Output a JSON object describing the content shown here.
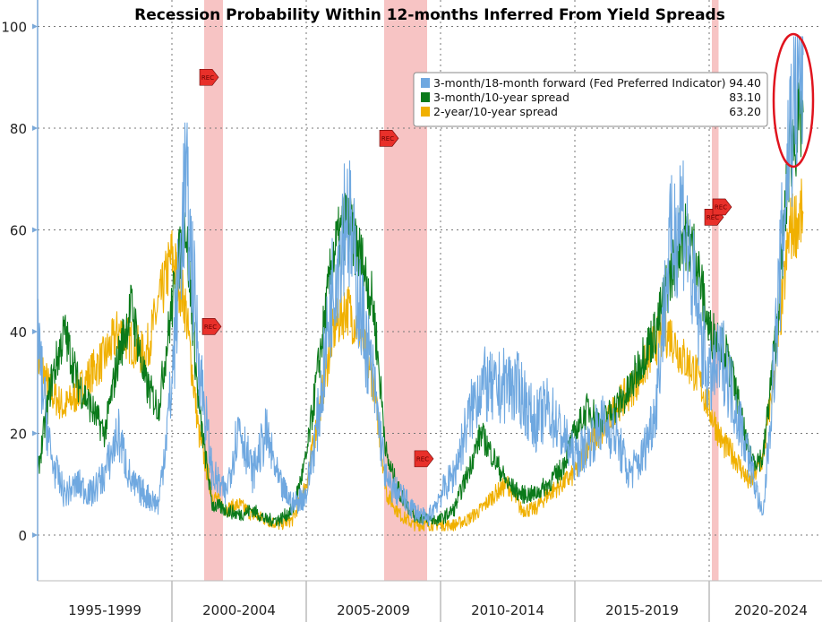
{
  "chart_data": {
    "type": "line",
    "title": "Recession Probability Within 12-months Inferred From Yield Spreads",
    "xlabel": "",
    "ylabel": "",
    "ylim": [
      -10,
      104
    ],
    "xlim": [
      1995,
      2024.6
    ],
    "yticks": [
      0,
      20,
      40,
      60,
      80,
      100
    ],
    "xcategories": [
      "1995-1999",
      "2000-2004",
      "2005-2009",
      "2010-2014",
      "2015-2019",
      "2020-2024"
    ],
    "grid": true,
    "legend_position": "top-right",
    "x": [
      1995,
      1995.5,
      1996,
      1996.5,
      1997,
      1997.5,
      1998,
      1998.5,
      1999,
      1999.5,
      2000,
      2000.5,
      2001,
      2001.5,
      2002,
      2002.5,
      2003,
      2003.5,
      2004,
      2004.5,
      2005,
      2005.5,
      2006,
      2006.5,
      2007,
      2007.5,
      2008,
      2008.5,
      2009,
      2009.5,
      2010,
      2010.5,
      2011,
      2011.5,
      2012,
      2012.5,
      2013,
      2013.5,
      2014,
      2014.5,
      2015,
      2015.5,
      2016,
      2016.5,
      2017,
      2017.5,
      2018,
      2018.5,
      2019,
      2019.5,
      2020,
      2020.5,
      2021,
      2021.5,
      2022,
      2022.5,
      2023,
      2023.5
    ],
    "series": [
      {
        "name": "3-month/18-month forward (Fed Preferred Indicator)",
        "last": "94.40",
        "color": "#6fa8e0",
        "values": [
          38,
          15,
          8,
          10,
          8,
          12,
          20,
          10,
          8,
          6,
          30,
          70,
          35,
          12,
          8,
          22,
          12,
          20,
          10,
          6,
          8,
          25,
          50,
          65,
          45,
          30,
          10,
          8,
          5,
          3,
          8,
          12,
          22,
          30,
          28,
          30,
          28,
          22,
          25,
          20,
          15,
          18,
          22,
          20,
          12,
          15,
          25,
          55,
          65,
          45,
          30,
          35,
          25,
          15,
          3,
          40,
          80,
          94.4
        ]
      },
      {
        "name": "3-month/10-year spread",
        "last": "83.10",
        "color": "#0a7a1a",
        "values": [
          12,
          30,
          40,
          30,
          25,
          20,
          35,
          45,
          30,
          25,
          45,
          62,
          25,
          6,
          5,
          4,
          5,
          3,
          3,
          5,
          15,
          35,
          55,
          62,
          55,
          45,
          15,
          8,
          4,
          3,
          3,
          5,
          12,
          20,
          15,
          10,
          8,
          8,
          10,
          13,
          20,
          25,
          22,
          25,
          28,
          35,
          40,
          50,
          60,
          55,
          40,
          38,
          28,
          15,
          15,
          40,
          75,
          83.1
        ]
      },
      {
        "name": "2-year/10-year spread",
        "last": "63.20",
        "color": "#f0b000",
        "values": [
          35,
          28,
          25,
          28,
          32,
          35,
          40,
          38,
          35,
          45,
          55,
          45,
          20,
          8,
          5,
          6,
          4,
          3,
          2,
          3,
          10,
          25,
          40,
          45,
          40,
          30,
          8,
          4,
          2,
          2,
          2,
          2,
          3,
          5,
          8,
          10,
          5,
          5,
          8,
          10,
          12,
          18,
          20,
          25,
          28,
          32,
          38,
          40,
          35,
          32,
          25,
          18,
          15,
          10,
          15,
          35,
          60,
          63.2
        ]
      }
    ],
    "recessions": [
      [
        2001.2,
        2001.9
      ],
      [
        2007.9,
        2009.5
      ],
      [
        2020.1,
        2020.35
      ]
    ],
    "rec_markers": [
      {
        "x": 2001.3,
        "y": 90,
        "label": "REC"
      },
      {
        "x": 2001.4,
        "y": 41,
        "label": "REC"
      },
      {
        "x": 2008.0,
        "y": 78,
        "label": "REC"
      },
      {
        "x": 2009.3,
        "y": 15,
        "label": "REC"
      },
      {
        "x": 2020.1,
        "y": 62.5,
        "label": "REC"
      },
      {
        "x": 2020.4,
        "y": 64.5,
        "label": "REC"
      }
    ],
    "colors": {
      "recession_band": "#f7c4c4",
      "rec_marker": "#e8302a",
      "highlight_ellipse": "#e0141e",
      "axis": "#7aa8d8"
    }
  }
}
